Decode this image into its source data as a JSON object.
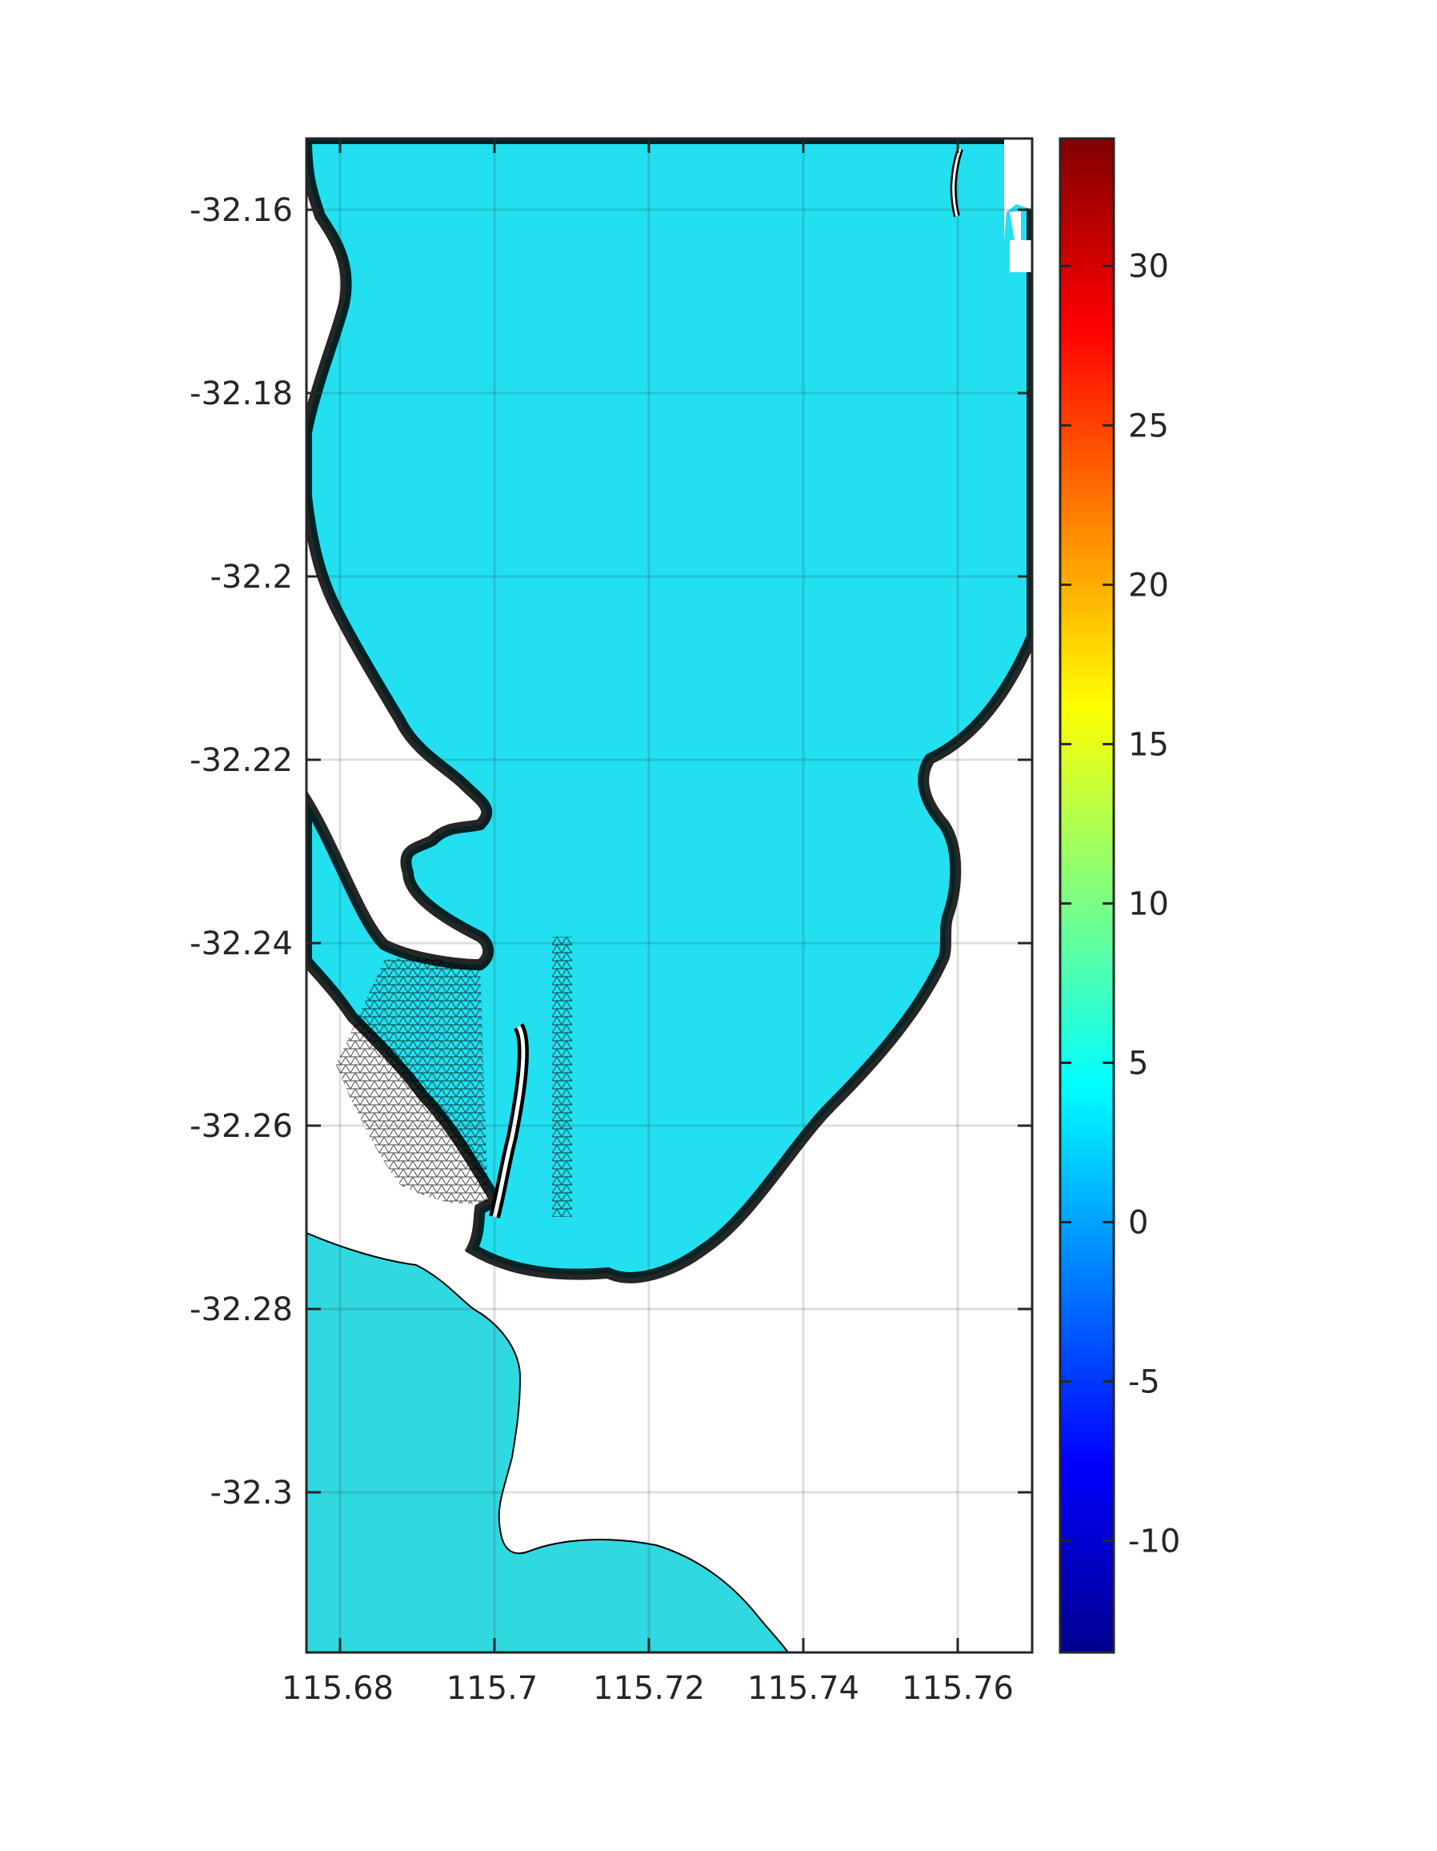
{
  "map": {
    "lon_range": [
      115.6761,
      115.77
    ],
    "lat_range": [
      -32.3184,
      -32.1525
    ],
    "lon_ticks": [
      "115.68",
      "115.7",
      "115.72",
      "115.74",
      "115.76"
    ],
    "lat_ticks": [
      "-32.16",
      "-32.18",
      "-32.2",
      "-32.22",
      "-32.24",
      "-32.26",
      "-32.28",
      "-32.3"
    ],
    "grid": true,
    "mesh": "triangular",
    "colormap": "jet"
  },
  "colorbar": {
    "range": [
      -13.5,
      34
    ],
    "tick_values": [
      30,
      25,
      20,
      15,
      10,
      5,
      0,
      -5,
      -10
    ],
    "tick_labels": [
      "30",
      "25",
      "20",
      "15",
      "10",
      "5",
      "0",
      "-5",
      "-10"
    ],
    "placement": "right"
  }
}
